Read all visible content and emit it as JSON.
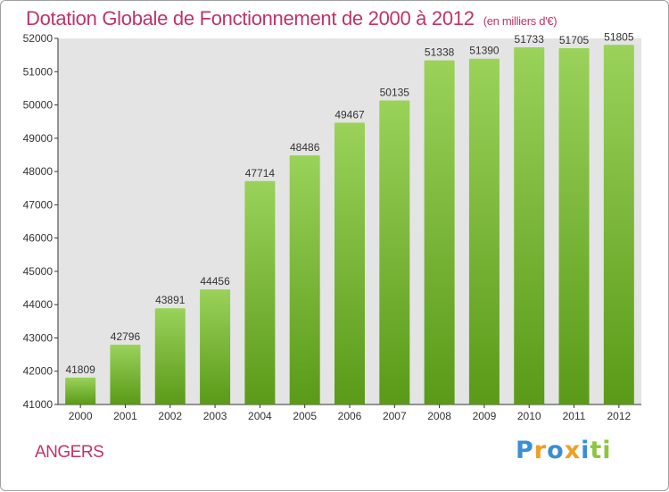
{
  "chart_data": {
    "type": "bar",
    "title": "Dotation Globale de Fonctionnement de 2000 à 2012",
    "unit_label": "(en milliers d'€)",
    "categories": [
      "2000",
      "2001",
      "2002",
      "2003",
      "2004",
      "2005",
      "2006",
      "2007",
      "2008",
      "2009",
      "2010",
      "2011",
      "2012"
    ],
    "values": [
      41809,
      42796,
      43891,
      44456,
      47714,
      48486,
      49467,
      50135,
      51338,
      51390,
      51733,
      51705,
      51805
    ],
    "ylim": [
      41000,
      52000
    ],
    "yticks": [
      41000,
      42000,
      43000,
      44000,
      45000,
      46000,
      47000,
      48000,
      49000,
      50000,
      51000,
      52000
    ],
    "xlabel": "",
    "ylabel": "",
    "grid": false,
    "colors": {
      "bar_top": "#9ad25a",
      "bar_bottom": "#5a9a18",
      "plot_bg": "#e4e4e4",
      "title": "#c0336a"
    }
  },
  "footer": {
    "city": "ANGERS",
    "logo_letters": [
      "P",
      "r",
      "o",
      "x",
      "i",
      "ti"
    ]
  }
}
